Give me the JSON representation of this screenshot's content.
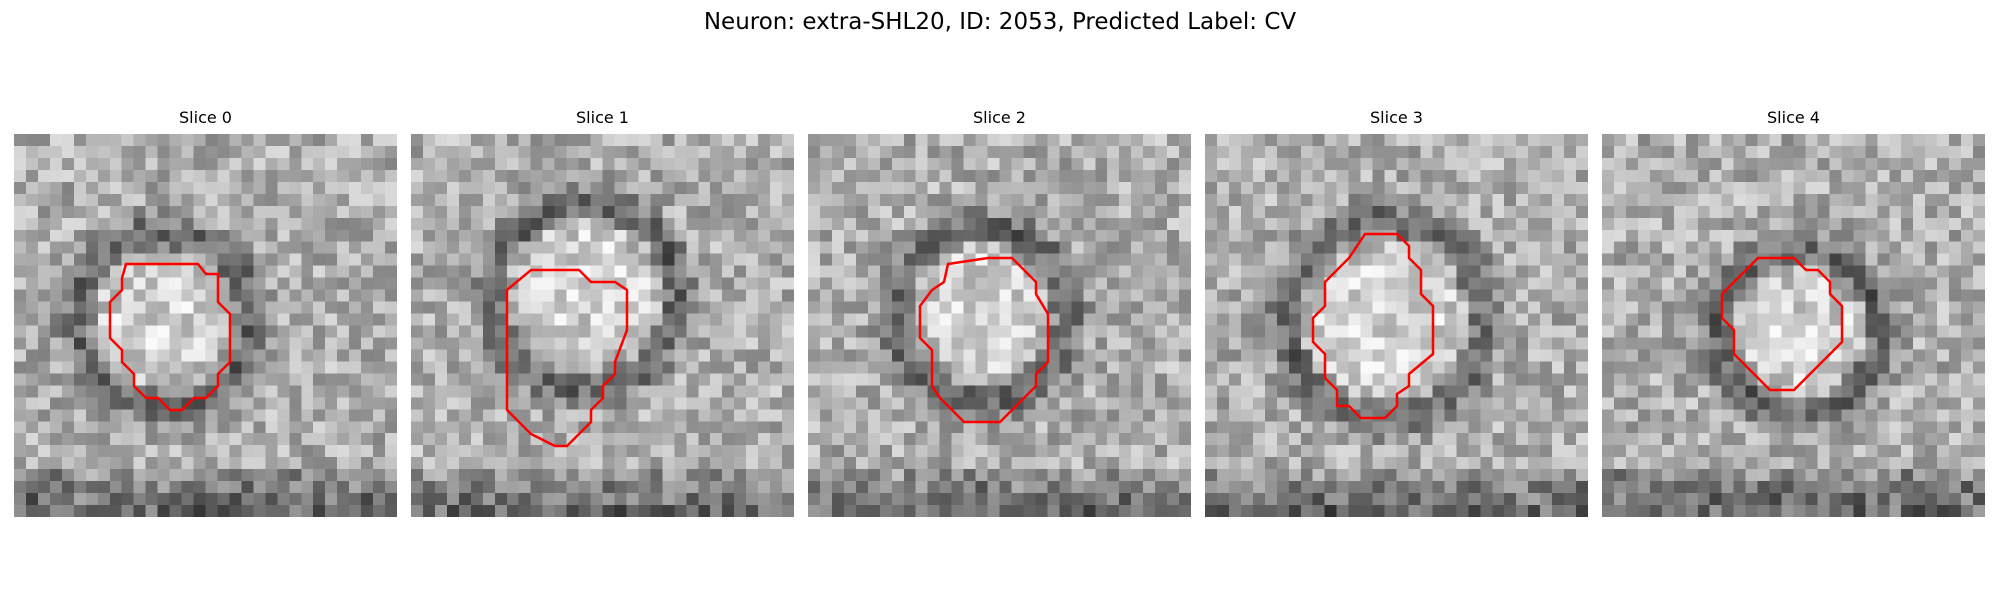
{
  "figure": {
    "title": "Neuron: extra-SHL20, ID: 2053, Predicted Label: CV"
  },
  "panels": [
    {
      "title": "Slice 0"
    },
    {
      "title": "Slice 1"
    },
    {
      "title": "Slice 2"
    },
    {
      "title": "Slice 3"
    },
    {
      "title": "Slice 4"
    }
  ],
  "colors": {
    "contour": "#ff0000",
    "background": "#ffffff"
  }
}
